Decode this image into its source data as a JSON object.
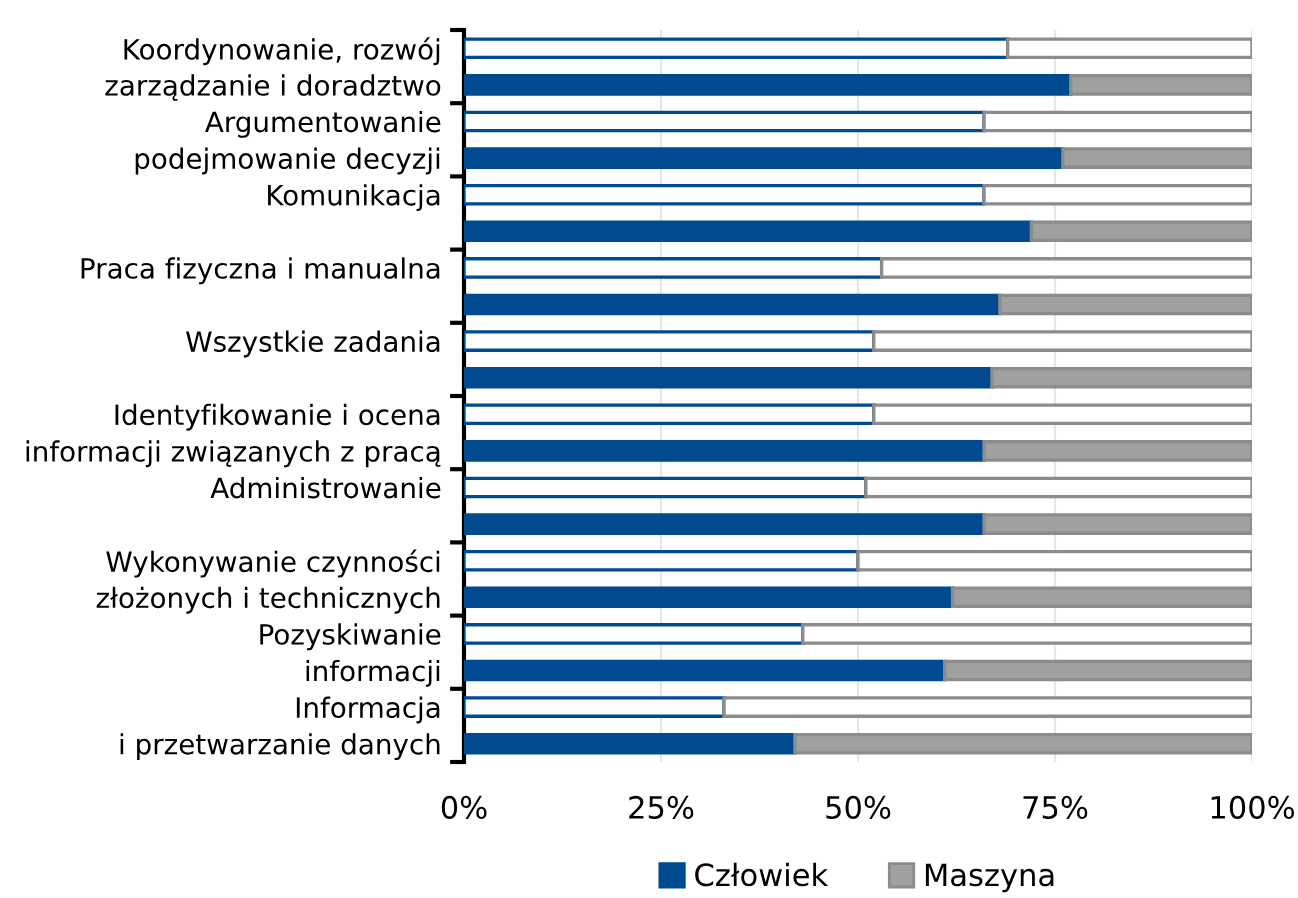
{
  "chart_data": {
    "type": "bar",
    "orientation": "horizontal",
    "stacked": true,
    "categories": [
      "Koordynowanie, rozwój",
      "zarządzanie i doradztwo",
      "Argumentowanie",
      "podejmowanie decyzji",
      "Komunikacja",
      null,
      "Praca fizyczna i manualna",
      null,
      "Wszystkie zadania",
      null,
      "Identyfikowanie i ocena",
      "informacji związanych z pracą",
      "Administrowanie",
      null,
      "Wykonywanie czynności",
      "złożonych i technicznych",
      "Pozyskiwanie",
      "informacji",
      "Informacja",
      "i przetwarzanie danych"
    ],
    "series": [
      {
        "name": "Człowiek",
        "color": "#004a8f",
        "colors": [
          "#ffffff",
          "#004a8f",
          "#ffffff",
          "#004a8f",
          "#ffffff",
          "#004a8f",
          "#ffffff",
          "#004a8f",
          "#ffffff",
          "#004a8f",
          "#ffffff",
          "#004a8f",
          "#ffffff",
          "#004a8f",
          "#ffffff",
          "#004a8f",
          "#ffffff",
          "#004a8f",
          "#ffffff",
          "#004a8f"
        ],
        "values": [
          69,
          77,
          66,
          76,
          66,
          72,
          53,
          68,
          52,
          67,
          52,
          66,
          51,
          66,
          50,
          62,
          43,
          61,
          33,
          42
        ]
      },
      {
        "name": "Maszyna",
        "color": "#8c8c8c",
        "colors": [
          "#ffffff",
          "#a0a0a0",
          "#ffffff",
          "#a0a0a0",
          "#ffffff",
          "#a0a0a0",
          "#ffffff",
          "#a0a0a0",
          "#ffffff",
          "#a0a0a0",
          "#ffffff",
          "#a0a0a0",
          "#ffffff",
          "#a0a0a0",
          "#ffffff",
          "#a0a0a0",
          "#ffffff",
          "#a0a0a0",
          "#ffffff",
          "#a0a0a0"
        ],
        "values": [
          31,
          23,
          34,
          24,
          34,
          28,
          47,
          32,
          48,
          33,
          48,
          34,
          49,
          34,
          50,
          38,
          57,
          39,
          67,
          58
        ]
      }
    ],
    "xlim": [
      0,
      100
    ],
    "xticks": [
      {
        "value": 0,
        "label": "0%"
      },
      {
        "value": 25,
        "label": "25%"
      },
      {
        "value": 50,
        "label": "50%"
      },
      {
        "value": 75,
        "label": "75%"
      },
      {
        "value": 100,
        "label": "100%"
      }
    ],
    "grid": "x",
    "legend": "bottom"
  }
}
